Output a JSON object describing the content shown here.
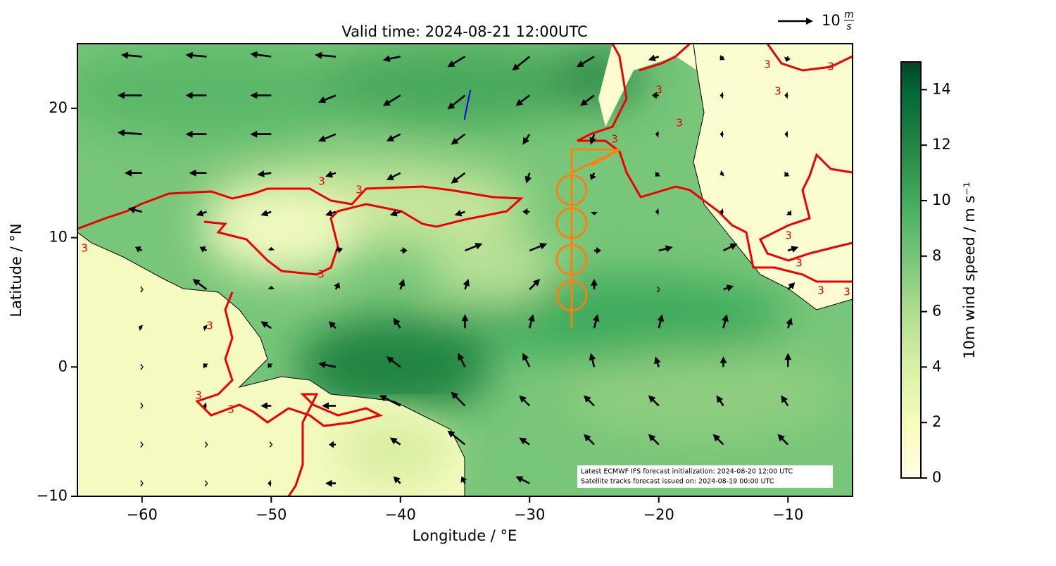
{
  "chart_data": {
    "type": "quiver",
    "title": "Valid time: 2024-08-21 12:00UTC",
    "xlabel": "Longitude / °E",
    "ylabel": "Latitude / °N",
    "xlim": [
      -65,
      -5
    ],
    "ylim": [
      -10,
      25
    ],
    "xticks": [
      {
        "value": -60,
        "label": "−60"
      },
      {
        "value": -50,
        "label": "−50"
      },
      {
        "value": -40,
        "label": "−40"
      },
      {
        "value": -30,
        "label": "−30"
      },
      {
        "value": -20,
        "label": "−20"
      },
      {
        "value": -10,
        "label": "−10"
      }
    ],
    "yticks": [
      {
        "value": -10,
        "label": "−10"
      },
      0,
      10,
      20
    ],
    "lons": [
      -60,
      -55,
      -50,
      -45,
      -40,
      -35,
      -30,
      -25,
      -20,
      -15,
      -10
    ],
    "lats": [
      24,
      21,
      18,
      15,
      12,
      9,
      6,
      3,
      0,
      -3,
      -6,
      -9
    ],
    "u": [
      [
        -6,
        -6,
        -6,
        -6,
        -5,
        -5,
        -5,
        -5,
        -3,
        -1,
        -0.5
      ],
      [
        -7,
        -6,
        -6,
        -5,
        -5,
        -5,
        -4,
        -4,
        -2,
        -1,
        -1
      ],
      [
        -7,
        -6,
        -6,
        -5,
        -4,
        -4,
        -2,
        -1,
        -1,
        -1,
        -1
      ],
      [
        -5,
        -5,
        -4,
        -3,
        -4,
        -4,
        -1,
        -1,
        -1,
        -1,
        -1
      ],
      [
        -4,
        -3,
        -3,
        -3,
        -3,
        -3,
        -2,
        0,
        -1,
        -1,
        1
      ],
      [
        -2,
        -2,
        0,
        2,
        2,
        5,
        5,
        2,
        4,
        4,
        3
      ],
      [
        0,
        -4,
        0,
        1,
        1,
        1,
        3,
        0,
        0,
        3,
        2
      ],
      [
        -1,
        -1,
        -3,
        -2,
        -2,
        0,
        1,
        1,
        1,
        1,
        1
      ],
      [
        0,
        -1,
        -1,
        -5,
        -4,
        -2,
        -2,
        -1,
        -1,
        0,
        0
      ],
      [
        0,
        -1,
        -3,
        -4,
        -6,
        -4,
        -3,
        -3,
        -3,
        -2,
        -2
      ],
      [
        0,
        0,
        0,
        -2,
        -3,
        -5,
        -3,
        -3,
        -3,
        -3,
        -3
      ],
      [
        0,
        0,
        -1,
        -3,
        -2,
        -1,
        -4,
        -3,
        -4,
        -4,
        -3
      ]
    ],
    "v": [
      [
        0.5,
        0.5,
        0.8,
        0.5,
        -1,
        -3,
        -4,
        -3,
        -1,
        -1,
        -1.5
      ],
      [
        0,
        0,
        0,
        -2,
        -3,
        -4,
        -3,
        -3,
        0,
        0,
        0
      ],
      [
        0.5,
        0,
        0,
        -2,
        -2,
        -3,
        -3,
        -3,
        0,
        0,
        0
      ],
      [
        0,
        0,
        -0.5,
        -1,
        -2,
        -3,
        -3,
        -2,
        -1,
        -0.5,
        -1
      ],
      [
        1,
        -1,
        -1,
        -1,
        -1,
        -1,
        0,
        -1,
        0,
        0,
        -1
      ],
      [
        1,
        1,
        1,
        0.5,
        0,
        2,
        2,
        0,
        1,
        2,
        1
      ],
      [
        0,
        3,
        1,
        2,
        3,
        3,
        3,
        3,
        0,
        1,
        2
      ],
      [
        0.5,
        0.5,
        2,
        2,
        3,
        4,
        4,
        4,
        4,
        4,
        3
      ],
      [
        0,
        1,
        1,
        1,
        3,
        4,
        4,
        4,
        3,
        3,
        4
      ],
      [
        0,
        0,
        0,
        0,
        3,
        4,
        3,
        3,
        3,
        3,
        3
      ],
      [
        0,
        0,
        0,
        0,
        2,
        4,
        2,
        3,
        3,
        3,
        3
      ],
      [
        0,
        0,
        0,
        0,
        2,
        2,
        2,
        2,
        2,
        2,
        2
      ]
    ],
    "colorbar": {
      "label": "10m wind speed / m s⁻¹",
      "lim": [
        0,
        15
      ],
      "ticks": [
        0,
        2,
        4,
        6,
        8,
        10,
        12,
        14
      ]
    },
    "contour": {
      "level": 3,
      "label": "3",
      "color": "#ee0000"
    },
    "quiver_key": {
      "value": 10,
      "unit_num": "m",
      "unit_den": "s"
    },
    "annotations": [
      "Latest ECMWF IFS forecast initialization: 2024-08-20 12:00 UTC",
      "Satellite tracks forecast issued on: 2024-08-19 00:00 UTC"
    ]
  }
}
